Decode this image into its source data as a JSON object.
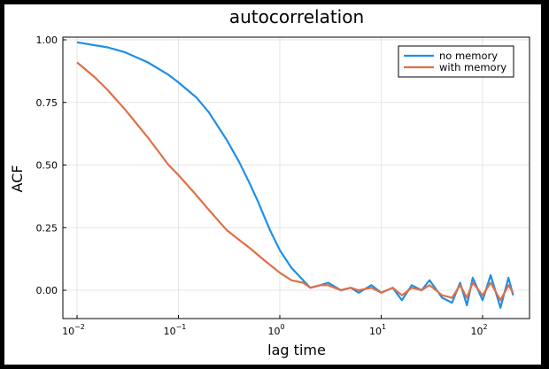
{
  "chart_data": {
    "type": "line",
    "title": "autocorrelation",
    "xlabel": "lag time",
    "ylabel": "ACF",
    "x_scale": "log10",
    "xlim": [
      0.01,
      200
    ],
    "ylim": [
      -0.11,
      1.02
    ],
    "grid": true,
    "legend_position": "top-right",
    "x_ticks": [
      {
        "value": 0.01,
        "base": "10",
        "exp": "−2"
      },
      {
        "value": 0.1,
        "base": "10",
        "exp": "−1"
      },
      {
        "value": 1,
        "base": "10",
        "exp": "0"
      },
      {
        "value": 10,
        "base": "10",
        "exp": "1"
      },
      {
        "value": 100,
        "base": "10",
        "exp": "2"
      }
    ],
    "y_ticks": [
      {
        "value": 0.0,
        "label": "0.00"
      },
      {
        "value": 0.25,
        "label": "0.25"
      },
      {
        "value": 0.5,
        "label": "0.50"
      },
      {
        "value": 0.75,
        "label": "0.75"
      },
      {
        "value": 1.0,
        "label": "1.00"
      }
    ],
    "series": [
      {
        "name": "no memory",
        "color": "#1f8fe6",
        "x": [
          0.01,
          0.02,
          0.03,
          0.05,
          0.08,
          0.1,
          0.15,
          0.2,
          0.3,
          0.4,
          0.5,
          0.6,
          0.8,
          1.0,
          1.3,
          1.7,
          2.0,
          2.5,
          3,
          4,
          5,
          6,
          8,
          10,
          13,
          16,
          20,
          25,
          30,
          40,
          50,
          60,
          70,
          80,
          100,
          120,
          150,
          180,
          200
        ],
        "y": [
          0.99,
          0.97,
          0.95,
          0.91,
          0.86,
          0.83,
          0.77,
          0.71,
          0.6,
          0.51,
          0.43,
          0.36,
          0.24,
          0.16,
          0.09,
          0.04,
          0.01,
          0.02,
          0.03,
          0.0,
          0.01,
          -0.01,
          0.02,
          -0.01,
          0.01,
          -0.04,
          0.02,
          0.0,
          0.04,
          -0.03,
          -0.05,
          0.03,
          -0.06,
          0.05,
          -0.04,
          0.06,
          -0.07,
          0.05,
          -0.02
        ]
      },
      {
        "name": "with memory",
        "color": "#e06f47",
        "x": [
          0.01,
          0.015,
          0.02,
          0.03,
          0.05,
          0.08,
          0.1,
          0.15,
          0.2,
          0.3,
          0.4,
          0.5,
          0.7,
          1.0,
          1.3,
          1.7,
          2.0,
          2.5,
          3,
          4,
          5,
          6,
          8,
          10,
          13,
          16,
          20,
          25,
          30,
          40,
          50,
          60,
          70,
          80,
          100,
          120,
          150,
          180,
          200
        ],
        "y": [
          0.91,
          0.85,
          0.8,
          0.72,
          0.61,
          0.5,
          0.46,
          0.38,
          0.32,
          0.24,
          0.2,
          0.17,
          0.12,
          0.07,
          0.04,
          0.03,
          0.01,
          0.02,
          0.02,
          0.0,
          0.01,
          0.0,
          0.01,
          -0.01,
          0.01,
          -0.02,
          0.01,
          0.0,
          0.02,
          -0.02,
          -0.03,
          0.02,
          -0.03,
          0.03,
          -0.02,
          0.03,
          -0.04,
          0.02,
          -0.01
        ]
      }
    ]
  }
}
